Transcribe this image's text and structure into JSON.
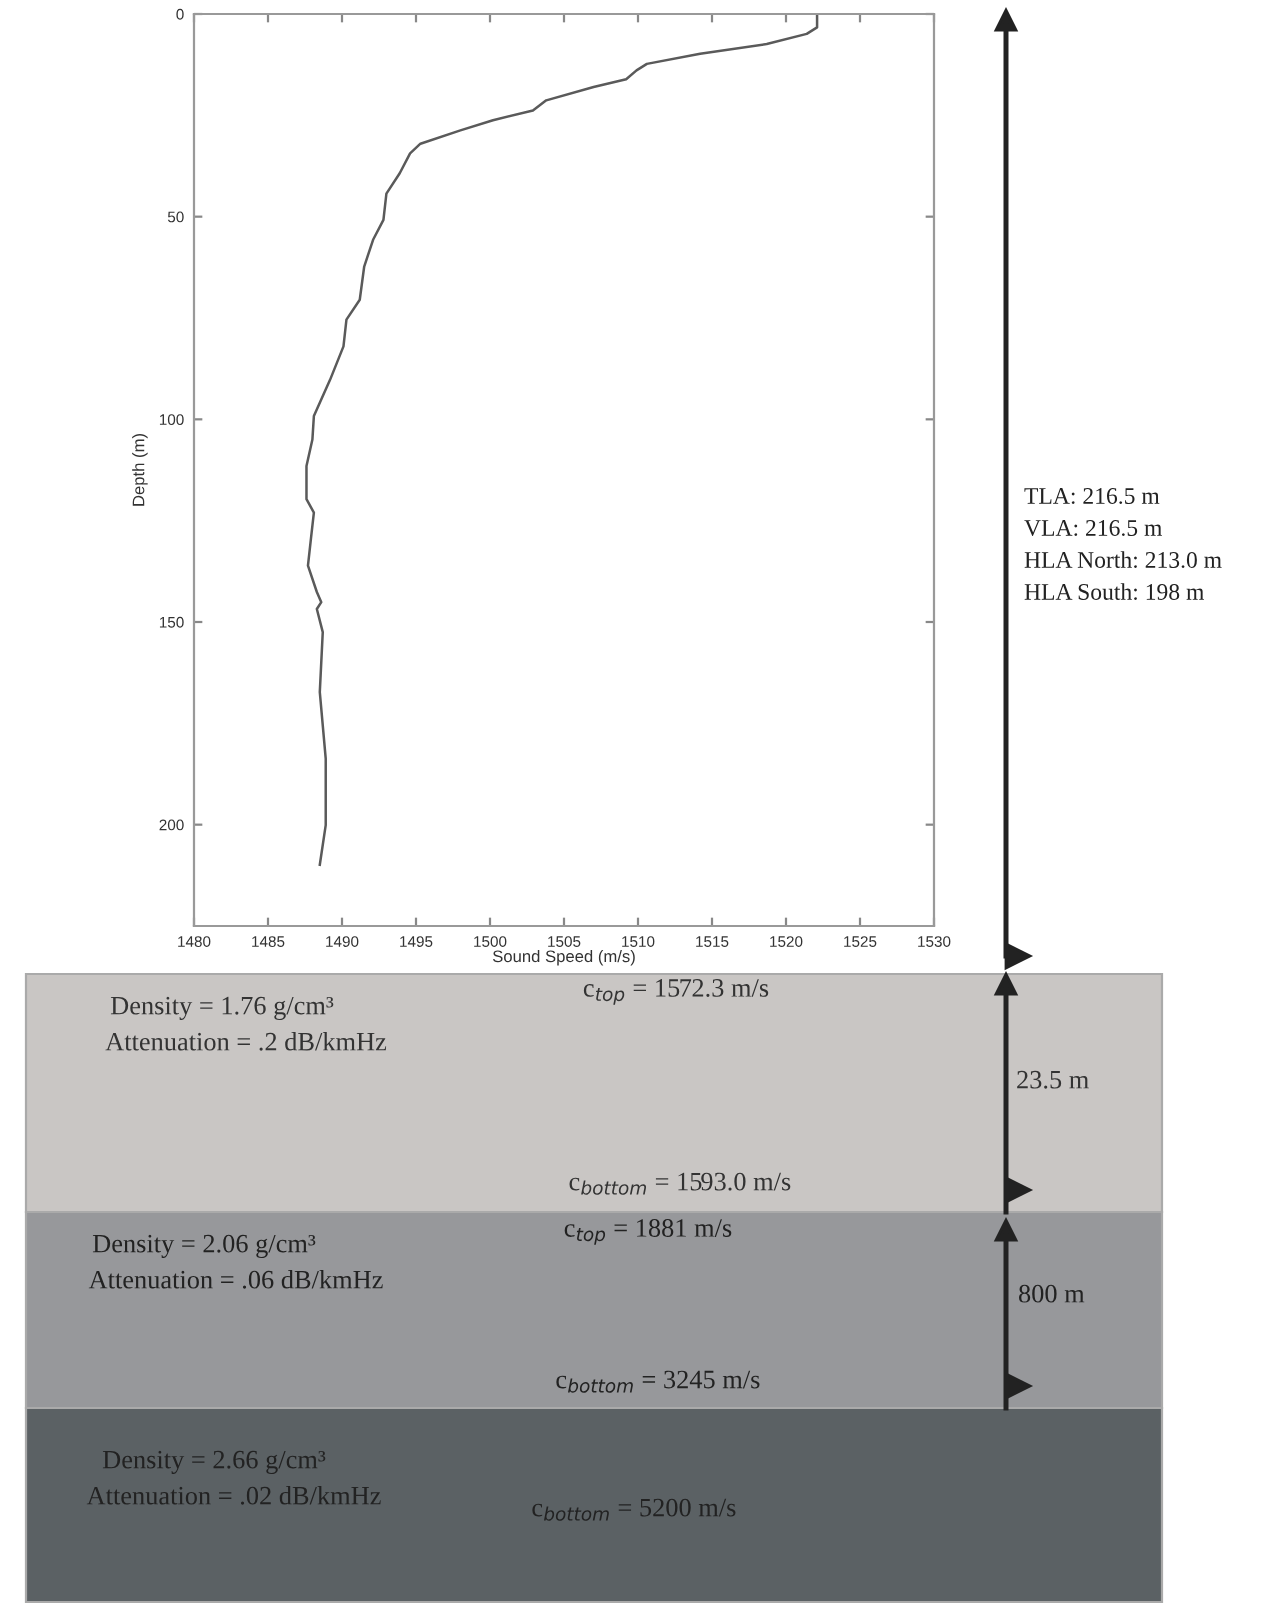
{
  "chart_data": {
    "type": "line",
    "xlabel": "Sound Speed (m/s)",
    "ylabel": "Depth (m)",
    "xlim": [
      1480,
      1530
    ],
    "xticks": [
      1480,
      1485,
      1490,
      1495,
      1500,
      1505,
      1510,
      1515,
      1520,
      1525,
      1530
    ],
    "ylim": [
      225,
      0
    ],
    "yticks": [
      0,
      50,
      100,
      150,
      200
    ],
    "series": [
      {
        "color": "#5a5a5a",
        "x": [
          1522.1,
          1522.1,
          1521.4,
          1518.7,
          1514.2,
          1510.6,
          1509.9,
          1509.2,
          1507.0,
          1503.8,
          1502.9,
          1500.2,
          1498.0,
          1495.3,
          1494.6,
          1493.9,
          1493.0,
          1492.8,
          1492.1,
          1491.5,
          1491.2,
          1490.3,
          1490.1,
          1489.2,
          1488.1,
          1488.0,
          1487.6,
          1487.6,
          1488.1,
          1487.9,
          1487.7,
          1488.3,
          1488.6,
          1488.3,
          1488.7,
          1488.5,
          1488.9,
          1488.9,
          1488.5
        ],
        "values": [
          0,
          3.3,
          4.9,
          7.4,
          9.8,
          12.3,
          13.9,
          16.1,
          18,
          21.3,
          23.8,
          26.2,
          28.7,
          32,
          34.4,
          39.3,
          44.3,
          50.8,
          55.7,
          62.3,
          70.5,
          75.4,
          82,
          90.2,
          99.2,
          105,
          111.5,
          119.7,
          123,
          129.5,
          136.1,
          142.6,
          145.1,
          146.8,
          152.5,
          167.3,
          183.7,
          200.1,
          209.9
        ]
      }
    ],
    "annotations": [
      "TLA: 216.5 m",
      "VLA: 216.5 m",
      "HLA North: 213.0 m",
      "HLA South: 198 m",
      "Density = 1.76 g/cm³",
      "Attenuation = .2 dB/kmHz",
      "c$_{top}$ = 1572.3 m/s",
      "c$_{bottom}$ = 1593.0 m/s",
      "23.5 m",
      "Density = 2.06 g/cm³",
      "Attenuation = .06 dB/kmHz",
      "c$_{top}$ = 1881 m/s",
      "c$_{bottom}$ = 3245 m/s",
      "800 m",
      "Density = 2.66 g/cm³",
      "Attenuation = .02 dB/kmHz",
      "c$_{bottom}$ = 5200 m/s"
    ]
  }
}
